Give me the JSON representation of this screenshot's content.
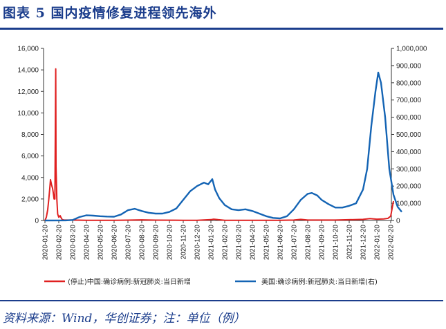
{
  "title": "图表 5   国内疫情修复进程领先海外",
  "source": "资料来源：Wind，华创证券；注：单位（例）",
  "colors": {
    "china": "#e02020",
    "usa": "#1464b4",
    "accent": "#1b3d8c"
  },
  "chart_data": {
    "type": "line",
    "x_tick_labels": [
      "2020-01-20",
      "2020-02-20",
      "2020-03-20",
      "2020-04-20",
      "2020-05-20",
      "2020-06-20",
      "2020-07-20",
      "2020-08-20",
      "2020-09-20",
      "2020-10-20",
      "2020-11-20",
      "2020-12-20",
      "2021-01-20",
      "2021-02-20",
      "2021-03-20",
      "2021-04-20",
      "2021-05-20",
      "2021-06-20",
      "2021-07-20",
      "2021-08-20",
      "2021-09-20",
      "2021-10-20",
      "2021-11-20",
      "2021-12-20",
      "2022-01-20",
      "2022-02-20"
    ],
    "y_left": {
      "min": 0,
      "max": 16000,
      "ticks": [
        "0",
        "2,000",
        "4,000",
        "6,000",
        "8,000",
        "10,000",
        "12,000",
        "14,000",
        "16,000"
      ]
    },
    "y_right": {
      "min": 0,
      "max": 1000000,
      "ticks": [
        "0",
        "100,000",
        "200,000",
        "300,000",
        "400,000",
        "500,000",
        "600,000",
        "700,000",
        "800,000",
        "900,000",
        "1,000,000"
      ]
    },
    "grid": false,
    "legend_position": "bottom",
    "series": [
      {
        "name": "(停止)中国:确诊病例:新冠肺炎:当日新增",
        "axis": "left",
        "color": "#e02020",
        "points": [
          [
            0,
            0
          ],
          [
            0.1,
            300
          ],
          [
            0.2,
            1000
          ],
          [
            0.28,
            2000
          ],
          [
            0.35,
            3000
          ],
          [
            0.4,
            3800
          ],
          [
            0.48,
            3300
          ],
          [
            0.55,
            3000
          ],
          [
            0.6,
            2600
          ],
          [
            0.66,
            2000
          ],
          [
            0.72,
            2000
          ],
          [
            0.78,
            14100
          ],
          [
            0.8,
            5000
          ],
          [
            0.86,
            2000
          ],
          [
            0.92,
            600
          ],
          [
            1.0,
            300
          ],
          [
            1.1,
            450
          ],
          [
            1.15,
            300
          ],
          [
            1.25,
            80
          ],
          [
            1.4,
            40
          ],
          [
            2,
            40
          ],
          [
            3,
            20
          ],
          [
            5,
            20
          ],
          [
            6,
            30
          ],
          [
            7,
            60
          ],
          [
            8,
            30
          ],
          [
            10,
            20
          ],
          [
            11,
            20
          ],
          [
            12,
            80
          ],
          [
            12.2,
            120
          ],
          [
            12.5,
            80
          ],
          [
            13,
            20
          ],
          [
            15,
            20
          ],
          [
            17,
            20
          ],
          [
            18,
            40
          ],
          [
            18.5,
            100
          ],
          [
            19,
            40
          ],
          [
            21,
            40
          ],
          [
            23,
            100
          ],
          [
            23.5,
            180
          ],
          [
            24,
            120
          ],
          [
            24.5,
            140
          ],
          [
            24.8,
            200
          ],
          [
            25,
            400
          ],
          [
            25.2,
            1800
          ]
        ]
      },
      {
        "name": "美国:确诊病例:新冠肺炎:当日新增(右)",
        "axis": "right",
        "color": "#1464b4",
        "points": [
          [
            0,
            0
          ],
          [
            1.5,
            500
          ],
          [
            2,
            3000
          ],
          [
            2.5,
            20000
          ],
          [
            3,
            30000
          ],
          [
            3.5,
            28000
          ],
          [
            4,
            25000
          ],
          [
            4.5,
            23000
          ],
          [
            5,
            22000
          ],
          [
            5.5,
            35000
          ],
          [
            6,
            60000
          ],
          [
            6.5,
            68000
          ],
          [
            7,
            55000
          ],
          [
            7.5,
            45000
          ],
          [
            8,
            40000
          ],
          [
            8.5,
            40000
          ],
          [
            9,
            50000
          ],
          [
            9.5,
            70000
          ],
          [
            10,
            120000
          ],
          [
            10.5,
            170000
          ],
          [
            11,
            200000
          ],
          [
            11.5,
            220000
          ],
          [
            11.8,
            210000
          ],
          [
            12.1,
            240000
          ],
          [
            12.3,
            180000
          ],
          [
            12.6,
            130000
          ],
          [
            13,
            90000
          ],
          [
            13.5,
            65000
          ],
          [
            14,
            60000
          ],
          [
            14.5,
            65000
          ],
          [
            15,
            55000
          ],
          [
            15.5,
            40000
          ],
          [
            16,
            25000
          ],
          [
            16.5,
            15000
          ],
          [
            17,
            12000
          ],
          [
            17.5,
            25000
          ],
          [
            18,
            65000
          ],
          [
            18.5,
            120000
          ],
          [
            19,
            155000
          ],
          [
            19.3,
            160000
          ],
          [
            19.7,
            145000
          ],
          [
            20,
            120000
          ],
          [
            20.5,
            95000
          ],
          [
            21,
            75000
          ],
          [
            21.5,
            75000
          ],
          [
            22,
            85000
          ],
          [
            22.5,
            100000
          ],
          [
            23,
            180000
          ],
          [
            23.3,
            300000
          ],
          [
            23.6,
            550000
          ],
          [
            23.9,
            750000
          ],
          [
            24.1,
            860000
          ],
          [
            24.3,
            800000
          ],
          [
            24.6,
            600000
          ],
          [
            24.9,
            300000
          ],
          [
            25.2,
            150000
          ],
          [
            25.5,
            80000
          ],
          [
            25.8,
            50000
          ]
        ]
      }
    ]
  }
}
